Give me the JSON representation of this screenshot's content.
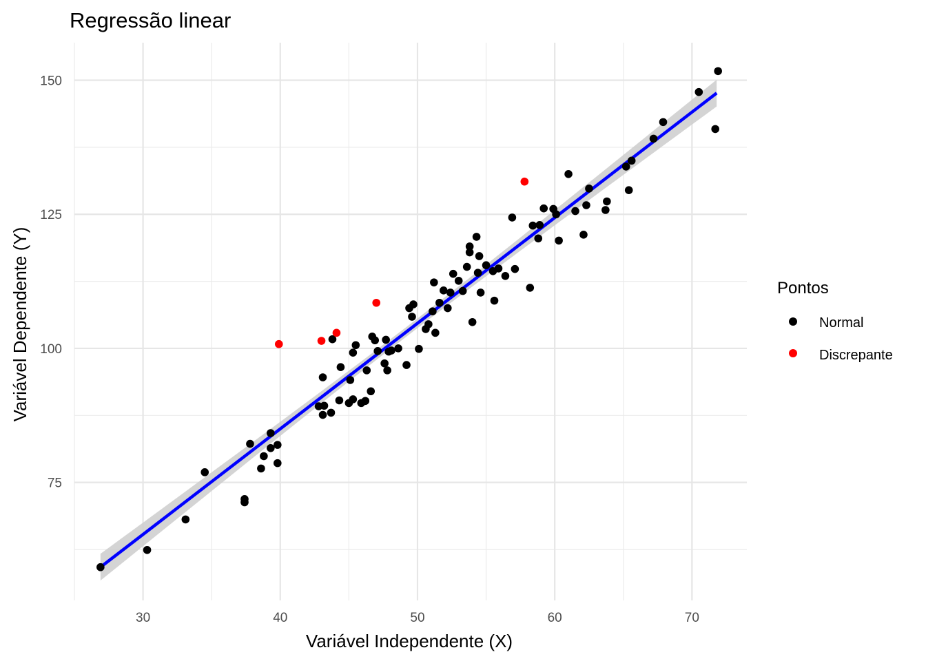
{
  "chart_data": {
    "type": "scatter",
    "title": "Regressão linear",
    "xlabel": "Variável Independente (X)",
    "ylabel": "Variável Dependente (Y)",
    "xlim": [
      25,
      74
    ],
    "ylim": [
      53,
      157
    ],
    "x_ticks": [
      30,
      40,
      50,
      60,
      70
    ],
    "y_ticks": [
      75,
      100,
      125,
      150
    ],
    "grid": true,
    "legend": {
      "title": "Pontos",
      "placement": "right",
      "entries": [
        {
          "name": "Normal",
          "color": "#000000"
        },
        {
          "name": "Discrepante",
          "color": "#ff0000"
        }
      ]
    },
    "regression": {
      "color": "#0000ff",
      "band_color": "#cccccc",
      "x": [
        26.9,
        71.8
      ],
      "y": [
        59.2,
        147.6
      ],
      "band_halfwidth_ends": 2.5,
      "band_halfwidth_center": 0.9
    },
    "series": [
      {
        "name": "Normal",
        "color": "#000000",
        "points": [
          [
            26.9,
            59.2
          ],
          [
            30.3,
            62.4
          ],
          [
            33.1,
            68.1
          ],
          [
            34.5,
            76.9
          ],
          [
            37.4,
            71.9
          ],
          [
            37.4,
            71.3
          ],
          [
            37.8,
            82.2
          ],
          [
            38.6,
            77.6
          ],
          [
            38.8,
            79.9
          ],
          [
            39.3,
            81.4
          ],
          [
            39.3,
            84.2
          ],
          [
            39.8,
            82.0
          ],
          [
            39.8,
            78.6
          ],
          [
            42.8,
            89.2
          ],
          [
            43.1,
            94.6
          ],
          [
            43.1,
            87.6
          ],
          [
            43.2,
            89.3
          ],
          [
            43.7,
            88.0
          ],
          [
            43.8,
            101.7
          ],
          [
            44.3,
            90.3
          ],
          [
            44.4,
            96.5
          ],
          [
            45.0,
            89.8
          ],
          [
            45.1,
            94.1
          ],
          [
            45.3,
            90.5
          ],
          [
            45.3,
            99.2
          ],
          [
            45.5,
            100.6
          ],
          [
            45.9,
            89.8
          ],
          [
            46.2,
            90.2
          ],
          [
            46.3,
            95.9
          ],
          [
            46.6,
            92.0
          ],
          [
            46.7,
            102.2
          ],
          [
            46.9,
            101.5
          ],
          [
            47.1,
            99.5
          ],
          [
            47.6,
            97.2
          ],
          [
            47.7,
            101.6
          ],
          [
            47.8,
            95.9
          ],
          [
            47.9,
            99.4
          ],
          [
            48.1,
            99.6
          ],
          [
            48.6,
            100.0
          ],
          [
            49.2,
            96.9
          ],
          [
            49.4,
            107.5
          ],
          [
            49.6,
            105.9
          ],
          [
            49.7,
            108.2
          ],
          [
            50.1,
            99.9
          ],
          [
            50.6,
            103.6
          ],
          [
            50.8,
            104.5
          ],
          [
            51.1,
            106.9
          ],
          [
            51.2,
            112.3
          ],
          [
            51.3,
            102.9
          ],
          [
            51.6,
            108.5
          ],
          [
            51.9,
            110.8
          ],
          [
            52.2,
            107.5
          ],
          [
            52.4,
            110.4
          ],
          [
            52.6,
            113.9
          ],
          [
            53.0,
            112.6
          ],
          [
            53.3,
            110.7
          ],
          [
            53.6,
            115.2
          ],
          [
            53.8,
            119.0
          ],
          [
            53.8,
            117.9
          ],
          [
            54.0,
            104.9
          ],
          [
            54.3,
            120.8
          ],
          [
            54.4,
            114.1
          ],
          [
            54.5,
            117.2
          ],
          [
            54.6,
            110.4
          ],
          [
            55.0,
            115.5
          ],
          [
            55.5,
            114.4
          ],
          [
            55.6,
            108.9
          ],
          [
            55.9,
            114.9
          ],
          [
            56.4,
            113.5
          ],
          [
            56.9,
            124.4
          ],
          [
            57.1,
            114.8
          ],
          [
            58.2,
            111.3
          ],
          [
            58.4,
            122.9
          ],
          [
            58.8,
            120.5
          ],
          [
            58.9,
            123.0
          ],
          [
            59.2,
            126.1
          ],
          [
            59.9,
            126.0
          ],
          [
            60.1,
            125.0
          ],
          [
            60.3,
            120.1
          ],
          [
            61.0,
            132.5
          ],
          [
            61.5,
            125.6
          ],
          [
            62.1,
            121.2
          ],
          [
            62.3,
            126.7
          ],
          [
            62.5,
            129.8
          ],
          [
            63.7,
            125.8
          ],
          [
            63.8,
            127.4
          ],
          [
            65.2,
            133.9
          ],
          [
            65.4,
            129.5
          ],
          [
            65.6,
            135.0
          ],
          [
            67.2,
            139.1
          ],
          [
            67.9,
            142.2
          ],
          [
            70.5,
            147.8
          ],
          [
            71.7,
            140.9
          ],
          [
            71.9,
            151.7
          ]
        ]
      },
      {
        "name": "Discrepante",
        "color": "#ff0000",
        "points": [
          [
            39.9,
            100.8
          ],
          [
            43.0,
            101.4
          ],
          [
            44.1,
            102.9
          ],
          [
            47.0,
            108.5
          ],
          [
            57.8,
            131.1
          ]
        ]
      }
    ]
  }
}
